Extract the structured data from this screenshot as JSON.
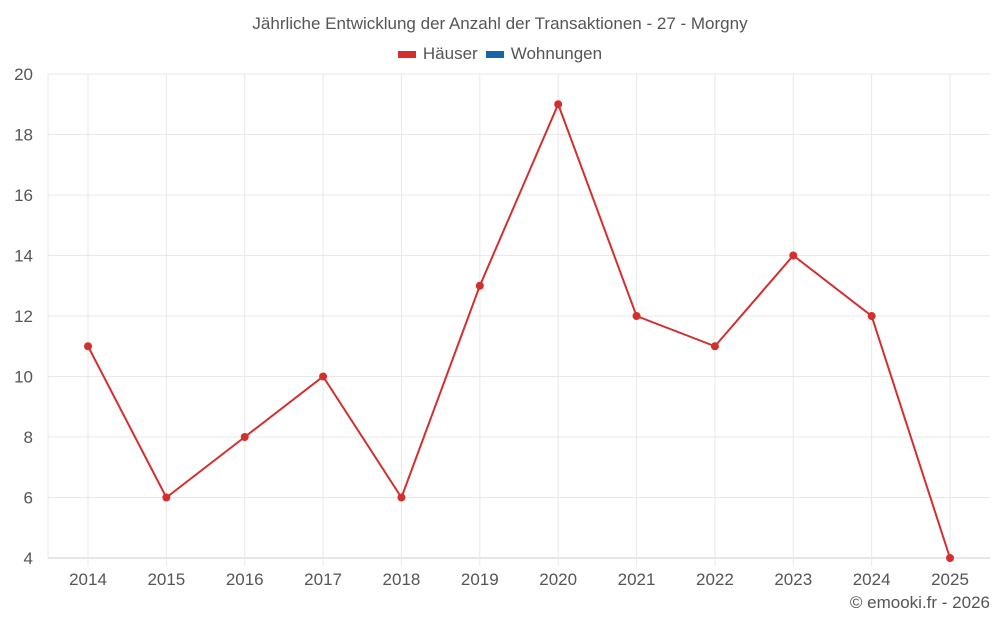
{
  "chart_data": {
    "type": "line",
    "title": "Jährliche Entwicklung der Anzahl der Transaktionen - 27 - Morgny",
    "xlabel": "",
    "ylabel": "",
    "categories": [
      "2014",
      "2015",
      "2016",
      "2017",
      "2018",
      "2019",
      "2020",
      "2021",
      "2022",
      "2023",
      "2024",
      "2025"
    ],
    "series": [
      {
        "name": "Häuser",
        "color": "#d32f2f",
        "values": [
          11,
          6,
          8,
          10,
          6,
          13,
          19,
          12,
          11,
          14,
          12,
          4
        ]
      },
      {
        "name": "Wohnungen",
        "color": "#1565a8",
        "values": []
      }
    ],
    "ylim": [
      4,
      20
    ],
    "yticks": [
      4,
      6,
      8,
      10,
      12,
      14,
      16,
      18,
      20
    ],
    "grid": true,
    "legend_position": "top"
  },
  "legend": [
    {
      "label": "Häuser",
      "color": "#d32f2f"
    },
    {
      "label": "Wohnungen",
      "color": "#1565a8"
    }
  ],
  "credit": "© emooki.fr - 2026"
}
